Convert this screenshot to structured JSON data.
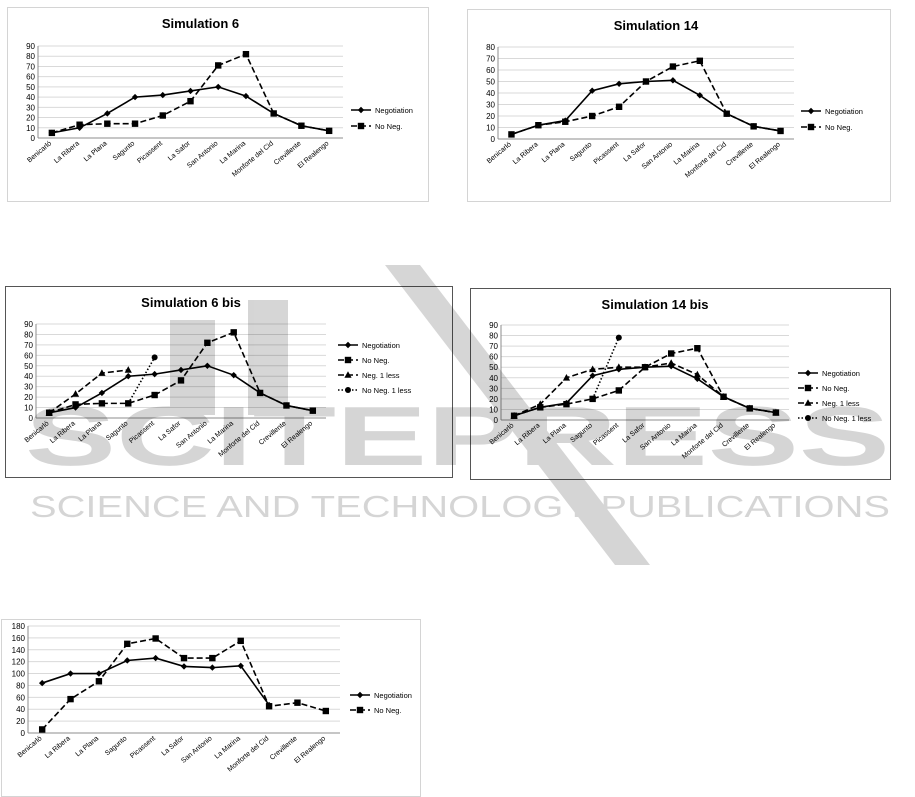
{
  "watermark": {
    "line1": "SCITEPRESS",
    "line2": "SCIENCE AND TECHNOLOGY PUBLICATIONS"
  },
  "colors": {
    "series": "#000000",
    "grid": "#d9d9d9",
    "frame": "#8c8c8c",
    "text": "#000000"
  },
  "chart_data": [
    {
      "type": "line",
      "title": "Simulation 6",
      "categories": [
        "Benicarló",
        "La Ribera",
        "La Plana",
        "Sagunto",
        "Picassent",
        "La Safor",
        "San Antonio",
        "La Marina",
        "Monforte del Cid",
        "Crevillente",
        "El Realengo"
      ],
      "ylim": [
        0,
        90
      ],
      "yticks": [
        0,
        10,
        20,
        30,
        40,
        50,
        60,
        70,
        80,
        90
      ],
      "legend": "right",
      "series": [
        {
          "name": "Negotiation",
          "values": [
            5,
            10,
            24,
            40,
            42,
            46,
            50,
            41,
            24,
            12,
            7
          ],
          "dash": "solid",
          "marker": "diamond"
        },
        {
          "name": "No Neg.",
          "values": [
            5,
            13,
            14,
            14,
            22,
            36,
            71,
            82,
            24,
            12,
            7
          ],
          "dash": "dashed",
          "marker": "square"
        }
      ]
    },
    {
      "type": "line",
      "title": "Simulation 14",
      "categories": [
        "Benicarló",
        "La Ribera",
        "La Plana",
        "Sagunto",
        "Picassent",
        "La Safor",
        "San Antonio",
        "La Marina",
        "Monforte del Cid",
        "Crevillente",
        "El Realengo"
      ],
      "ylim": [
        0,
        80
      ],
      "yticks": [
        0,
        10,
        20,
        30,
        40,
        50,
        60,
        70,
        80
      ],
      "legend": "right",
      "series": [
        {
          "name": "Negotiation",
          "values": [
            4,
            12,
            16,
            42,
            48,
            50,
            51,
            38,
            22,
            11,
            7
          ],
          "dash": "solid",
          "marker": "diamond"
        },
        {
          "name": "No Neg.",
          "values": [
            4,
            12,
            15,
            20,
            28,
            50,
            63,
            68,
            22,
            11,
            7
          ],
          "dash": "dashed",
          "marker": "square"
        }
      ]
    },
    {
      "type": "line",
      "title": "Simulation 6 bis",
      "categories": [
        "Benicarló",
        "La Ribera",
        "La Plana",
        "Sagunto",
        "Picassent",
        "La Safor",
        "San Antonio",
        "La Marina",
        "Monforte del Cid",
        "Crevillente",
        "El Realengo"
      ],
      "ylim": [
        0,
        90
      ],
      "yticks": [
        0,
        10,
        20,
        30,
        40,
        50,
        60,
        70,
        80,
        90
      ],
      "legend": "right",
      "series": [
        {
          "name": "Negotiation",
          "values": [
            5,
            10,
            24,
            40,
            42,
            46,
            50,
            41,
            24,
            12,
            7
          ],
          "dash": "solid",
          "marker": "diamond"
        },
        {
          "name": "No Neg.",
          "values": [
            5,
            13,
            14,
            14,
            22,
            36,
            72,
            82,
            24,
            12,
            7
          ],
          "dash": "dashed",
          "marker": "square"
        },
        {
          "name": "Neg. 1 less",
          "values": [
            5,
            23,
            43,
            46,
            null,
            null,
            null,
            null,
            null,
            null,
            null
          ],
          "dash": "dashed",
          "marker": "triangle"
        },
        {
          "name": "No Neg. 1 less",
          "values": [
            null,
            null,
            null,
            14,
            58,
            null,
            null,
            null,
            null,
            null,
            null
          ],
          "dash": "dotted",
          "marker": "circle"
        }
      ]
    },
    {
      "type": "line",
      "title": "Simulation 14 bis",
      "categories": [
        "Benicarló",
        "La Ribera",
        "La Plana",
        "Sagunto",
        "Picassent",
        "La Safor",
        "San Antonio",
        "La Marina",
        "Monforte del Cid",
        "Crevillente",
        "El Realengo"
      ],
      "ylim": [
        0,
        90
      ],
      "yticks": [
        0,
        10,
        20,
        30,
        40,
        50,
        60,
        70,
        80,
        90
      ],
      "legend": "right",
      "series": [
        {
          "name": "Negotiation",
          "values": [
            4,
            12,
            16,
            42,
            48,
            50,
            51,
            39,
            22,
            11,
            7
          ],
          "dash": "solid",
          "marker": "diamond"
        },
        {
          "name": "No Neg.",
          "values": [
            4,
            12,
            15,
            20,
            28,
            50,
            63,
            68,
            22,
            11,
            7
          ],
          "dash": "dashed",
          "marker": "square"
        },
        {
          "name": "Neg. 1 less",
          "values": [
            4,
            15,
            40,
            48,
            50,
            50,
            54,
            43,
            22,
            11,
            7
          ],
          "dash": "dashed",
          "marker": "triangle"
        },
        {
          "name": "No Neg. 1 less",
          "values": [
            null,
            null,
            null,
            20,
            78,
            null,
            null,
            null,
            null,
            null,
            null
          ],
          "dash": "dotted",
          "marker": "circle"
        }
      ]
    },
    {
      "type": "line",
      "title": "",
      "categories": [
        "Benicarló",
        "La Ribera",
        "La Plana",
        "Sagunto",
        "Picassent",
        "La Safor",
        "San Antonio",
        "La Marina",
        "Monforte del Cid",
        "Crevillente",
        "El Realengo"
      ],
      "ylim": [
        0,
        180
      ],
      "yticks": [
        0,
        20,
        40,
        60,
        80,
        100,
        120,
        140,
        160,
        180
      ],
      "legend": "right",
      "series": [
        {
          "name": "Negotiation",
          "values": [
            84,
            100,
            100,
            122,
            126,
            112,
            110,
            113,
            47,
            null,
            null
          ],
          "dash": "solid",
          "marker": "diamond"
        },
        {
          "name": "No Neg.",
          "values": [
            6,
            57,
            87,
            150,
            159,
            126,
            126,
            155,
            45,
            51,
            37
          ],
          "dash": "dashed",
          "marker": "square"
        }
      ]
    }
  ]
}
